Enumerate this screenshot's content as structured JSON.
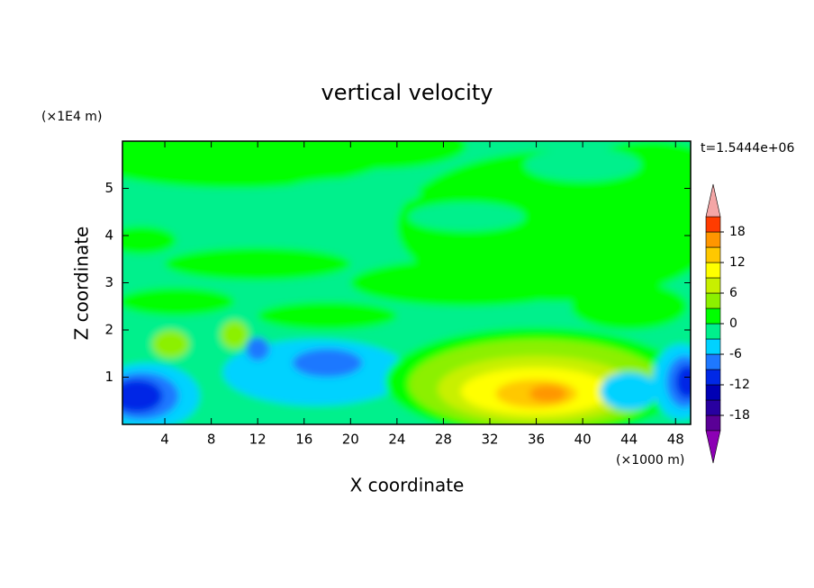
{
  "chart_data": {
    "type": "contour",
    "title": "vertical velocity",
    "x_label": "X coordinate",
    "y_label": "Z coordinate",
    "x_unit": "(×1000 m)",
    "y_unit": "(×1E4 m)",
    "annotation": "t=1.5444e+06",
    "xlim": [
      0.35,
      49.3
    ],
    "xticks": [
      4,
      8,
      12,
      16,
      20,
      24,
      28,
      32,
      36,
      40,
      44,
      48
    ],
    "ylim": [
      0,
      6
    ],
    "yticks": [
      1,
      2,
      3,
      4,
      5
    ],
    "levels": [
      -21,
      -18,
      -15,
      -12,
      -9,
      -6,
      -3,
      0,
      3,
      6,
      9,
      12,
      15,
      18,
      21
    ],
    "colorbar_ticks": [
      -18,
      -12,
      -6,
      0,
      6,
      12,
      18
    ],
    "colors": [
      "#8c00b4",
      "#5a0096",
      "#2800a0",
      "#0000b4",
      "#0028e6",
      "#1e78ff",
      "#00d2ff",
      "#00f08c",
      "#00ff00",
      "#8cf000",
      "#c8f000",
      "#ffff00",
      "#ffc800",
      "#ff9600",
      "#ff3c00",
      "#f4a6a6"
    ]
  }
}
